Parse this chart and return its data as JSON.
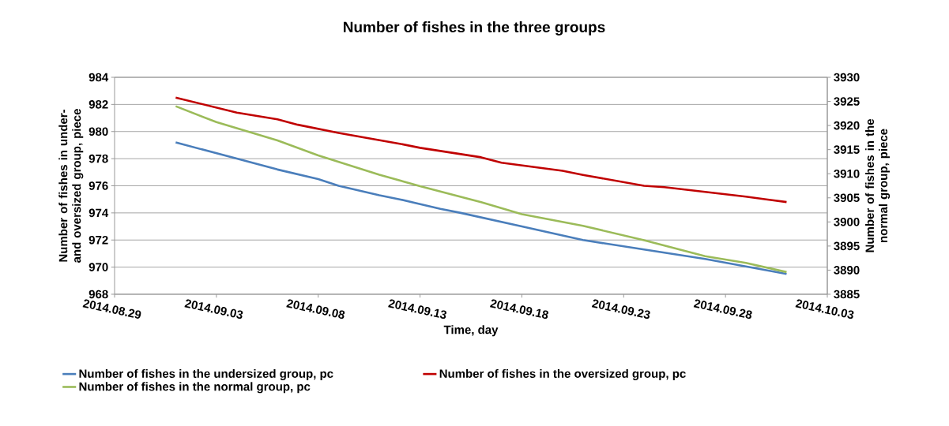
{
  "chart_data": {
    "type": "line",
    "title": "Number of fishes in the three groups",
    "xlabel": "Time, day",
    "ylabel": "Number of fishes in under- and oversized group, piece",
    "y2label": "Number of fishes in the normal group, piece",
    "series": [
      {
        "name": "Number of fishes in the undersized group, pc",
        "color": "#4a7ebb",
        "x": [
          "2014-09-01",
          "2014-09-04",
          "2014-09-06",
          "2014-09-08",
          "2014-09-09",
          "2014-09-11",
          "2014-09-12",
          "2014-09-14",
          "2014-09-15",
          "2014-09-18",
          "2014-09-21",
          "2014-09-24",
          "2014-09-27",
          "2014-10-01"
        ],
        "values": [
          979.2,
          978.0,
          977.2,
          976.5,
          976.0,
          975.3,
          975.0,
          974.3,
          974.0,
          973.0,
          972.0,
          971.3,
          970.6,
          969.5
        ]
      },
      {
        "name": "Number of fishes in the oversized group, pc",
        "color": "#c00000",
        "x": [
          "2014-09-01",
          "2014-09-04",
          "2014-09-06",
          "2014-09-07",
          "2014-09-09",
          "2014-09-12",
          "2014-09-13",
          "2014-09-16",
          "2014-09-17",
          "2014-09-20",
          "2014-09-21",
          "2014-09-24",
          "2014-09-25",
          "2014-09-29",
          "2014-09-30",
          "2014-10-01"
        ],
        "values": [
          982.5,
          981.4,
          980.9,
          980.5,
          979.9,
          979.1,
          978.8,
          978.1,
          977.7,
          977.1,
          976.8,
          976.0,
          975.9,
          975.2,
          975.0,
          974.8
        ]
      },
      {
        "name": "Number of fishes in the normal group, pc",
        "color": "#9bbb59",
        "axis": "y2",
        "x": [
          "2014-09-01",
          "2014-09-03",
          "2014-09-06",
          "2014-09-08",
          "2014-09-11",
          "2014-09-13",
          "2014-09-16",
          "2014-09-18",
          "2014-09-21",
          "2014-09-24",
          "2014-09-25",
          "2014-09-27",
          "2014-09-29",
          "2014-10-01"
        ],
        "values": [
          3924.0,
          3920.7,
          3916.9,
          3913.8,
          3909.8,
          3907.4,
          3904.1,
          3901.6,
          3899.2,
          3896.2,
          3895.1,
          3892.9,
          3891.5,
          3889.6
        ]
      }
    ],
    "xlim": [
      "2014-08-29",
      "2014-10-03"
    ],
    "xticks": [
      {
        "value": "2014-08-29",
        "label": "2014.08.29"
      },
      {
        "value": "2014-09-03",
        "label": "2014.09.03"
      },
      {
        "value": "2014-09-08",
        "label": "2014.09.08"
      },
      {
        "value": "2014-09-13",
        "label": "2014.09.13"
      },
      {
        "value": "2014-09-18",
        "label": "2014.09.18"
      },
      {
        "value": "2014-09-23",
        "label": "2014.09.23"
      },
      {
        "value": "2014-09-28",
        "label": "2014.09.28"
      },
      {
        "value": "2014-10-03",
        "label": "2014.10.03"
      }
    ],
    "ylim": [
      968,
      984
    ],
    "yticks": [
      968,
      970,
      972,
      974,
      976,
      978,
      980,
      982,
      984
    ],
    "y2lim": [
      3885,
      3930
    ],
    "y2ticks": [
      3885,
      3890,
      3895,
      3900,
      3905,
      3910,
      3915,
      3920,
      3925,
      3930
    ],
    "grid": "y",
    "legend": "bottom"
  }
}
